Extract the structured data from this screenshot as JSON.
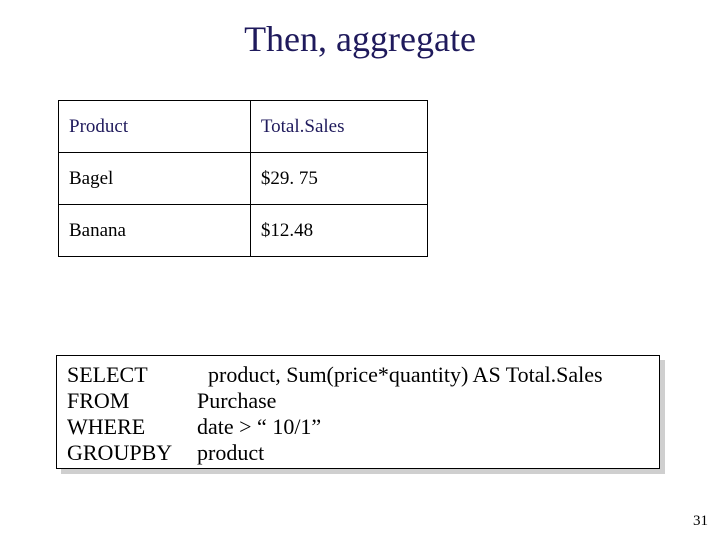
{
  "title": "Then, aggregate",
  "table": {
    "header": {
      "col1": "Product",
      "col2": "Total.Sales"
    },
    "rows": [
      {
        "col1": "Bagel",
        "col2": "$29. 75"
      },
      {
        "col1": "Banana",
        "col2": "$12.48"
      }
    ]
  },
  "sql": {
    "lines": [
      {
        "keyword": "SELECT",
        "rest": "  product, Sum(price*quantity) AS Total.Sales"
      },
      {
        "keyword": "FROM",
        "rest": "Purchase"
      },
      {
        "keyword": "WHERE",
        "rest": "date > “ 10/1”"
      },
      {
        "keyword": "GROUPBY",
        "rest": "product"
      }
    ]
  },
  "page_number": "31",
  "colors": {
    "title_color": "#1f1a5c",
    "header_text_color": "#1f1a5c",
    "body_text_color": "#000000",
    "shadow_color": "#cfcfcf",
    "border_color": "#000000",
    "background": "#ffffff"
  }
}
